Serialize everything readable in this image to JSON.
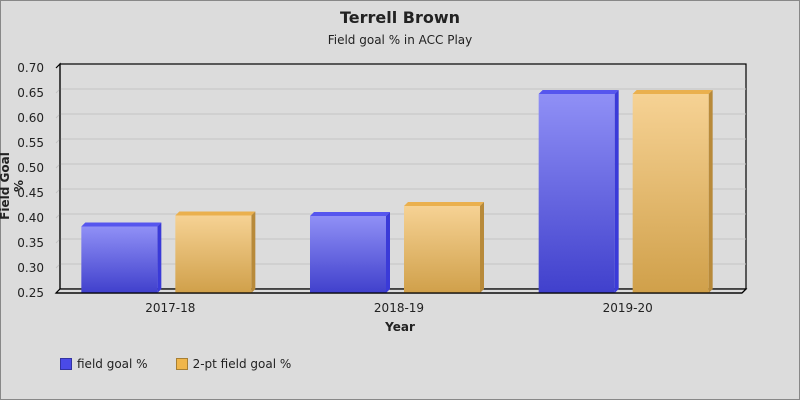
{
  "chart_data": {
    "type": "bar",
    "title": "Terrell Brown",
    "subtitle": "Field goal % in ACC Play",
    "xlabel": "Year",
    "ylabel": "Field Goal %",
    "categories": [
      "2017-18",
      "2018-19",
      "2019-20"
    ],
    "series": [
      {
        "name": "field goal %",
        "color": "#4a4ae8",
        "values": [
          0.383,
          0.404,
          0.648
        ]
      },
      {
        "name": "2-pt field goal %",
        "color": "#f0b64a",
        "values": [
          0.405,
          0.424,
          0.648
        ]
      }
    ],
    "ylim": [
      0.25,
      0.7
    ],
    "yticks": [
      "0.70",
      "0.65",
      "0.60",
      "0.55",
      "0.50",
      "0.45",
      "0.40",
      "0.35",
      "0.30",
      "0.25"
    ],
    "grid": true,
    "legend_position": "bottom-left"
  },
  "legend": [
    {
      "label": "field goal %",
      "color": "#4a4ae8"
    },
    {
      "label": "2-pt field goal %",
      "color": "#f0b64a"
    }
  ]
}
